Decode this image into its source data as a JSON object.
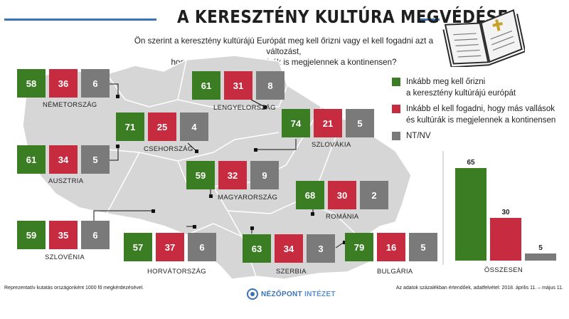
{
  "header": {
    "title": "A KERESZTÉNY KULTÚRA MEGVÉDÉSE",
    "subtitle_line1": "Ön szerint a keresztény kultúrájú Európát meg kell őrizni vagy el kell fogadni azt a változást,",
    "subtitle_line2": "hogy más vallások és kultúrák is megjelennek a kontinensen?"
  },
  "legend": {
    "keep": "Inkább meg kell őrizni\na keresztény kultúrájú európát",
    "accept": "Inkább el kell fogadni, hogy más vallások\nés kultúrák is megjelennek a kontinensen",
    "nt": "NT/NV"
  },
  "colors": {
    "keep": "#3b7d23",
    "accept": "#c62b3f",
    "nt": "#7a7a7a",
    "map": "#d6d6d6",
    "accent": "#3a72b8"
  },
  "chart_data": [
    {
      "type": "table",
      "columns": [
        "Inkább meg kell őrizni a keresztény kultúrájú európát",
        "Inkább el kell fogadni, hogy más vallások és kultúrák is megjelennek a kontinensen",
        "NT/NV"
      ],
      "rows": [
        {
          "country": "NÉMETORSZÁG",
          "values": [
            58,
            36,
            6
          ]
        },
        {
          "country": "LENGYELORSZÁG",
          "values": [
            61,
            31,
            8
          ]
        },
        {
          "country": "CSEHORSZÁG",
          "values": [
            71,
            25,
            4
          ]
        },
        {
          "country": "SZLOVÁKIA",
          "values": [
            74,
            21,
            5
          ]
        },
        {
          "country": "AUSZTRIA",
          "values": [
            61,
            34,
            5
          ]
        },
        {
          "country": "MAGYARORSZÁG",
          "values": [
            59,
            32,
            9
          ]
        },
        {
          "country": "ROMÁNIA",
          "values": [
            68,
            30,
            2
          ]
        },
        {
          "country": "SZLOVÉNIA",
          "values": [
            59,
            35,
            6
          ]
        },
        {
          "country": "HORVÁTORSZÁG",
          "values": [
            57,
            37,
            6
          ]
        },
        {
          "country": "SZERBIA",
          "values": [
            63,
            34,
            3
          ]
        },
        {
          "country": "BULGÁRIA",
          "values": [
            79,
            16,
            5
          ]
        }
      ]
    },
    {
      "type": "bar",
      "categories": [
        "Inkább meg kell őrizni",
        "Inkább el kell fogadni",
        "NT/NV"
      ],
      "values": [
        65,
        30,
        5
      ],
      "xlabel": "ÖSSZESEN",
      "ylim": [
        0,
        65
      ]
    }
  ],
  "footer": {
    "left": "Reprezentatív kutatás országonként 1000 fő megkérdezésével.",
    "right": "Az adatok százalékban értendőek, adatfelvétel: 2018. április 11. – május 11.",
    "logo_main": "NÉZŐPONT",
    "logo_sub": "INTÉZET"
  }
}
